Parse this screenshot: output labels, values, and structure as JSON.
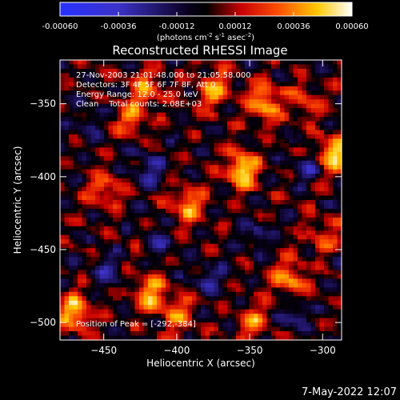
{
  "chart_data": {
    "type": "heatmap",
    "title": "Reconstructed RHESSI Image",
    "colorbar": {
      "ticks": [
        "-0.00060",
        "-0.00036",
        "-0.00012",
        "0.00012",
        "0.00036",
        "0.00060"
      ],
      "range": [
        -0.0006,
        0.0006
      ],
      "colormap": "blue-black-red-yellow-white"
    },
    "colorbar_units_parts": [
      "(photons cm",
      "-2",
      " s",
      "-1",
      " asec",
      "-2",
      ")"
    ],
    "xlabel": "Heliocentric X (arcsec)",
    "ylabel": "Heliocentric Y (arcsec)",
    "xlim": [
      -480,
      -287
    ],
    "ylim": [
      -512,
      -320
    ],
    "xticks": [
      -450,
      -400,
      -350,
      -300
    ],
    "yticks": [
      -350,
      -400,
      -450,
      -500
    ],
    "annotations": [
      "27-Nov-2003 21:01:48.000 to 21:05:58.000",
      "Detectors: 3F 4F 5F 6F 7F 8F, Att 0",
      "Energy Range: 12.0 - 25.0 keV",
      "Clean    Total counts: 2.08E+03"
    ],
    "peak_label": "Position of Peak = [-292,-384]",
    "peak": {
      "x": -292,
      "y": -384
    },
    "bright_sources": [
      {
        "x": -340,
        "y": -350,
        "strength": 0.9
      },
      {
        "x": -355,
        "y": -395,
        "strength": 1.0
      },
      {
        "x": -375,
        "y": -340,
        "strength": 0.75
      },
      {
        "x": -420,
        "y": -340,
        "strength": 0.6
      },
      {
        "x": -392,
        "y": -420,
        "strength": 0.75
      },
      {
        "x": -292,
        "y": -384,
        "strength": 0.9
      },
      {
        "x": -470,
        "y": -493,
        "strength": 0.95
      },
      {
        "x": -418,
        "y": -480,
        "strength": 0.8
      },
      {
        "x": -398,
        "y": -495,
        "strength": 0.6
      },
      {
        "x": -450,
        "y": -410,
        "strength": 0.55
      },
      {
        "x": -322,
        "y": -470,
        "strength": 0.75
      },
      {
        "x": -348,
        "y": -500,
        "strength": 0.65
      },
      {
        "x": -300,
        "y": -440,
        "strength": 0.5
      },
      {
        "x": -432,
        "y": -360,
        "strength": 0.55
      },
      {
        "x": -312,
        "y": -348,
        "strength": 0.45
      }
    ],
    "dim_sources": [
      {
        "x": -420,
        "y": -395,
        "strength": 0.5
      },
      {
        "x": -310,
        "y": -395,
        "strength": 0.45
      },
      {
        "x": -448,
        "y": -465,
        "strength": 0.45
      },
      {
        "x": -380,
        "y": -470,
        "strength": 0.4
      },
      {
        "x": -320,
        "y": -495,
        "strength": 0.45
      },
      {
        "x": -460,
        "y": -365,
        "strength": 0.35
      },
      {
        "x": -345,
        "y": -440,
        "strength": 0.4
      },
      {
        "x": -410,
        "y": -445,
        "strength": 0.35
      }
    ]
  },
  "footer": {
    "timestamp": "7-May-2022 12:07"
  }
}
